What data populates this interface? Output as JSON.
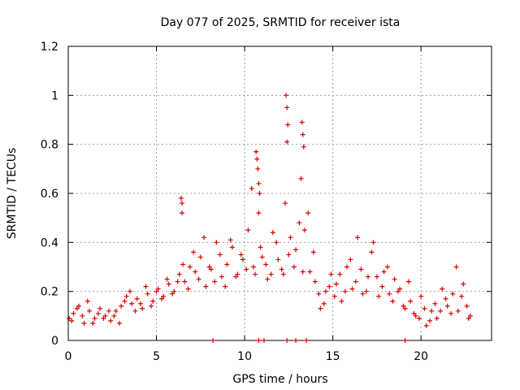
{
  "chart_data": {
    "type": "scatter",
    "title": "Day 077 of 2025, SRMTID for receiver ista",
    "xlabel": "GPS time / hours",
    "ylabel": "SRMTID / TECUs",
    "xlim": [
      0,
      24
    ],
    "ylim": [
      0,
      1.2
    ],
    "xticks": [
      0,
      5,
      10,
      15,
      20
    ],
    "yticks": [
      0,
      0.2,
      0.4,
      0.6,
      0.8,
      1,
      1.2
    ],
    "xtick_labels": [
      "0",
      "5",
      "10",
      "15",
      "20"
    ],
    "ytick_labels": [
      "0",
      "0.2",
      "0.4",
      "0.6",
      "0.8",
      "1",
      "1.2"
    ],
    "grid": true,
    "marker": "+",
    "series": [
      {
        "name": "SRMTID",
        "color": "#dd0000",
        "x": [
          0.05,
          0.3,
          0.6,
          0.9,
          1.2,
          1.5,
          1.8,
          2.1,
          2.4,
          2.7,
          3.0,
          3.3,
          3.6,
          3.9,
          4.2,
          4.5,
          4.8,
          5.1,
          5.4,
          5.7,
          6.0,
          6.3,
          6.45,
          6.6,
          6.9,
          7.2,
          7.5,
          7.8,
          8.1,
          8.4,
          8.7,
          9.0,
          9.3,
          9.6,
          9.9,
          10.2,
          10.5,
          10.7,
          10.9,
          11.2,
          11.5,
          11.8,
          12.1,
          12.3,
          12.5,
          12.8,
          13.1,
          13.3,
          13.6,
          13.9,
          14.2,
          14.5,
          14.8,
          15.1,
          15.4,
          15.7,
          16.0,
          16.3,
          16.6,
          16.9,
          17.2,
          17.5,
          17.8,
          18.1,
          18.4,
          18.7,
          19.0,
          19.3,
          19.6,
          19.9,
          20.2,
          20.5,
          20.8,
          21.1,
          21.4,
          21.7,
          22.0,
          22.3,
          22.6,
          22.8,
          0.2,
          0.5,
          0.8,
          1.1,
          1.4,
          1.7,
          2.0,
          2.3,
          2.6,
          2.9,
          3.2,
          3.5,
          3.8,
          4.1,
          4.4,
          4.7,
          5.0,
          5.3,
          5.6,
          5.9,
          6.2,
          6.5,
          6.8,
          7.1,
          7.4,
          7.7,
          8.0,
          8.3,
          8.6,
          8.9,
          9.2,
          9.5,
          9.8,
          10.1,
          10.4,
          10.6,
          10.8,
          11.0,
          11.3,
          11.6,
          11.9,
          12.2,
          12.4,
          12.6,
          12.9,
          13.2,
          13.4,
          13.7,
          14.0,
          14.3,
          14.6,
          14.9,
          15.2,
          15.5,
          15.8,
          16.1,
          16.4,
          16.7,
          17.0,
          17.3,
          17.6,
          17.9,
          18.2,
          18.5,
          18.8,
          19.1,
          19.4,
          19.7,
          20.0,
          20.3,
          20.6,
          20.9,
          21.2,
          21.5,
          21.8,
          22.1,
          22.4,
          22.7,
          12.35,
          12.4,
          12.45,
          13.25,
          13.3,
          13.35,
          10.65,
          10.75,
          10.8,
          10.85,
          6.4,
          6.45,
          8.2,
          10.8,
          11.1,
          12.4,
          12.9,
          13.5,
          19.1
        ],
        "y": [
          0.09,
          0.11,
          0.14,
          0.07,
          0.12,
          0.09,
          0.13,
          0.1,
          0.08,
          0.12,
          0.14,
          0.18,
          0.15,
          0.17,
          0.13,
          0.19,
          0.16,
          0.21,
          0.18,
          0.23,
          0.2,
          0.27,
          0.56,
          0.24,
          0.3,
          0.28,
          0.34,
          0.22,
          0.29,
          0.4,
          0.26,
          0.31,
          0.38,
          0.27,
          0.33,
          0.45,
          0.3,
          0.74,
          0.38,
          0.31,
          0.27,
          0.4,
          0.29,
          0.56,
          0.35,
          0.3,
          0.48,
          0.28,
          0.52,
          0.36,
          0.19,
          0.15,
          0.22,
          0.18,
          0.27,
          0.2,
          0.33,
          0.24,
          0.29,
          0.2,
          0.36,
          0.26,
          0.22,
          0.3,
          0.16,
          0.2,
          0.14,
          0.24,
          0.11,
          0.09,
          0.13,
          0.08,
          0.15,
          0.12,
          0.17,
          0.11,
          0.3,
          0.18,
          0.14,
          0.1,
          0.08,
          0.13,
          0.1,
          0.16,
          0.07,
          0.11,
          0.09,
          0.12,
          0.1,
          0.07,
          0.16,
          0.2,
          0.12,
          0.15,
          0.22,
          0.14,
          0.2,
          0.17,
          0.25,
          0.19,
          0.24,
          0.31,
          0.21,
          0.36,
          0.25,
          0.42,
          0.3,
          0.24,
          0.35,
          0.22,
          0.41,
          0.26,
          0.35,
          0.29,
          0.62,
          0.27,
          0.52,
          0.34,
          0.25,
          0.44,
          0.33,
          0.27,
          0.81,
          0.42,
          0.37,
          0.66,
          0.45,
          0.28,
          0.24,
          0.13,
          0.2,
          0.27,
          0.23,
          0.16,
          0.3,
          0.21,
          0.42,
          0.19,
          0.26,
          0.4,
          0.18,
          0.28,
          0.19,
          0.25,
          0.21,
          0.13,
          0.16,
          0.1,
          0.18,
          0.06,
          0.12,
          0.09,
          0.21,
          0.14,
          0.19,
          0.12,
          0.23,
          0.09,
          1.0,
          0.95,
          0.88,
          0.89,
          0.84,
          0.79,
          0.77,
          0.7,
          0.64,
          0.6,
          0.58,
          0.52,
          0.0,
          0.0,
          0.0,
          0.0,
          0.0,
          0.0,
          0.0
        ]
      }
    ]
  }
}
